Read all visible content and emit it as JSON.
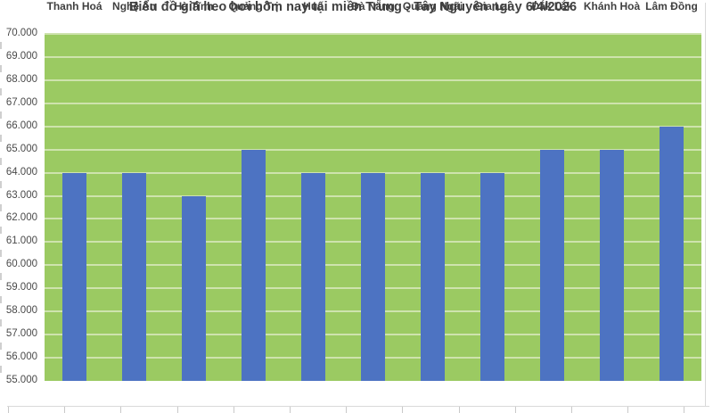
{
  "chart_data": {
    "type": "bar",
    "title": "Biểu đồ giá heo hơi hôm nay tại miền Trung - Tây Nguyên ngày 6/4/2026",
    "categories": [
      "Thanh Hoá",
      "Nghệ An",
      "Hà Tĩnh",
      "Quảng Trị",
      "Huế",
      "Đà Nẵng",
      "Quảng Ngãi",
      "Gia Lai",
      "Đắk Lắk",
      "Khánh Hoà",
      "Lâm Đồng"
    ],
    "values": [
      64000,
      64000,
      63000,
      65000,
      64000,
      64000,
      64000,
      64000,
      65000,
      65000,
      66000
    ],
    "xlabel": "",
    "ylabel": "",
    "ylim": [
      55000,
      70000
    ],
    "ytick_step": 1000,
    "ytick_labels": [
      "55.000",
      "56.000",
      "57.000",
      "58.000",
      "59.000",
      "60.000",
      "61.000",
      "62.000",
      "63.000",
      "64.000",
      "65.000",
      "66.000",
      "67.000",
      "68.000",
      "69.000",
      "70.000"
    ],
    "grid": true,
    "legend": "none",
    "colors": {
      "plot_bg": "#9bca62",
      "bar": "#4d73c2",
      "gridline_over_bg": "#cee3ad",
      "title_text": "#3f3f3f",
      "axis_text": "#4a4a4a",
      "table_line": "#d9d9d9"
    }
  }
}
